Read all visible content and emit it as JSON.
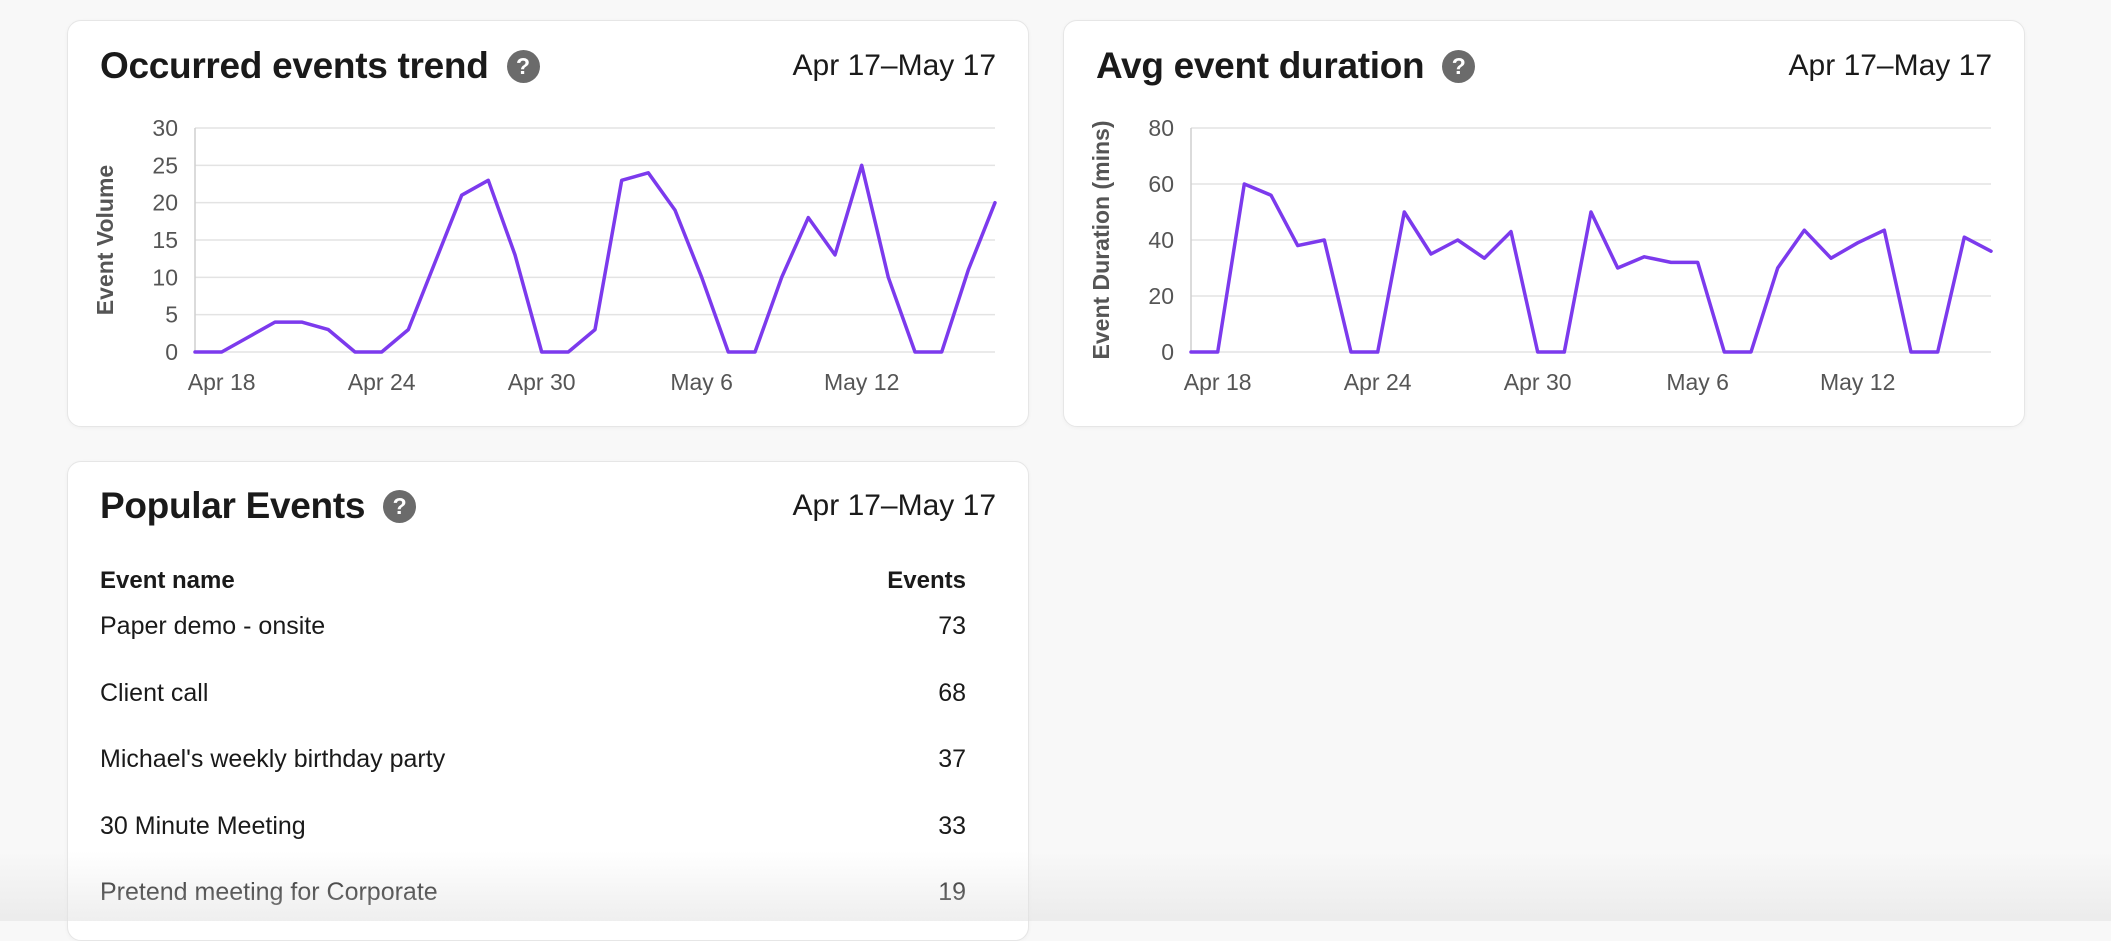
{
  "colors": {
    "line": "#7c3aed",
    "grid": "#e3e3e3",
    "help": "#6b6b6b"
  },
  "trend_card": {
    "title": "Occurred events trend",
    "range": "Apr 17–May 17",
    "help_icon": "question-circle-icon"
  },
  "duration_card": {
    "title": "Avg event duration",
    "range": "Apr 17–May 17",
    "help_icon": "question-circle-icon"
  },
  "popular_card": {
    "title": "Popular Events",
    "range": "Apr 17–May 17",
    "help_icon": "question-circle-icon",
    "col_name": "Event name",
    "col_events": "Events",
    "rows": [
      {
        "name": "Paper demo - onsite",
        "count": "73"
      },
      {
        "name": "Client call",
        "count": "68"
      },
      {
        "name": "Michael's weekly birthday party",
        "count": "37"
      },
      {
        "name": "30 Minute Meeting",
        "count": "33"
      },
      {
        "name": "Pretend meeting for Corporate",
        "count": "19"
      }
    ]
  },
  "chart_data": [
    {
      "type": "line",
      "ylabel": "Event Volume",
      "ylim": [
        0,
        30
      ],
      "yticks": [
        "0",
        "5",
        "10",
        "15",
        "20",
        "25",
        "30"
      ],
      "xticks": [
        "Apr 18",
        "Apr 24",
        "Apr 30",
        "May 6",
        "May 12"
      ],
      "x": [
        "Apr 17",
        "Apr 18",
        "Apr 19",
        "Apr 20",
        "Apr 21",
        "Apr 22",
        "Apr 23",
        "Apr 24",
        "Apr 25",
        "Apr 26",
        "Apr 27",
        "Apr 28",
        "Apr 29",
        "Apr 30",
        "May 1",
        "May 2",
        "May 3",
        "May 4",
        "May 5",
        "May 6",
        "May 7",
        "May 8",
        "May 9",
        "May 10",
        "May 11",
        "May 12",
        "May 13",
        "May 14",
        "May 15",
        "May 16",
        "May 17"
      ],
      "values": [
        0,
        0,
        2,
        4,
        4,
        3,
        0,
        0,
        3,
        12,
        21,
        23,
        13,
        0,
        0,
        3,
        23,
        24,
        19,
        10,
        0,
        0,
        10,
        18,
        13,
        25,
        10,
        0,
        0,
        11,
        20
      ],
      "grid": true
    },
    {
      "type": "line",
      "ylabel": "Event Duration (mins)",
      "ylim": [
        0,
        80
      ],
      "yticks": [
        "0",
        "20",
        "40",
        "60",
        "80"
      ],
      "xticks": [
        "Apr 18",
        "Apr 24",
        "Apr 30",
        "May 6",
        "May 12"
      ],
      "x": [
        "Apr 17",
        "Apr 18",
        "Apr 19",
        "Apr 20",
        "Apr 21",
        "Apr 22",
        "Apr 23",
        "Apr 24",
        "Apr 25",
        "Apr 26",
        "Apr 27",
        "Apr 28",
        "Apr 29",
        "Apr 30",
        "May 1",
        "May 2",
        "May 3",
        "May 4",
        "May 5",
        "May 6",
        "May 7",
        "May 8",
        "May 9",
        "May 10",
        "May 11",
        "May 12",
        "May 13",
        "May 14",
        "May 15",
        "May 16",
        "May 17"
      ],
      "values": [
        0,
        0,
        60,
        56,
        38,
        40,
        0,
        0,
        50,
        35,
        40,
        33.5,
        43,
        0,
        0,
        50,
        30,
        34,
        32,
        32,
        0,
        0,
        30,
        43.5,
        33.5,
        39,
        43.5,
        0,
        0,
        41,
        36
      ],
      "grid": true
    }
  ]
}
